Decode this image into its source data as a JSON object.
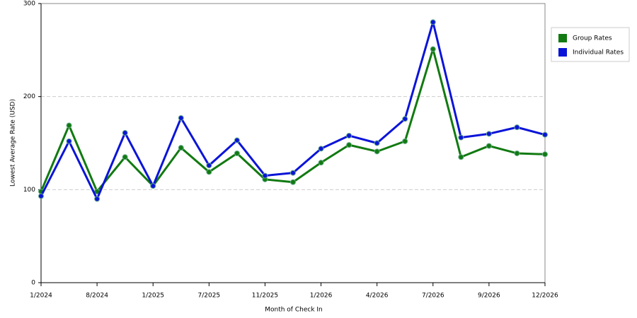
{
  "chart_data": {
    "type": "line",
    "x_label": "Month of Check In",
    "y_label": "Lowest Average Rate (USD)",
    "categories": [
      "1/2024",
      null,
      "8/2024",
      null,
      "1/2025",
      null,
      "7/2025",
      null,
      "11/2025",
      null,
      "1/2026",
      null,
      "4/2026",
      null,
      "7/2026",
      null,
      "9/2026",
      null,
      "12/2026"
    ],
    "series": [
      {
        "name": "Group Rates",
        "color": "#117a11",
        "values": [
          98,
          169,
          98,
          135,
          104,
          145,
          119,
          139,
          111,
          108,
          129,
          148,
          141,
          152,
          251,
          135,
          147,
          139,
          138
        ]
      },
      {
        "name": "Individual Rates",
        "color": "#0a14d8",
        "values": [
          93,
          152,
          90,
          161,
          104,
          177,
          126,
          153,
          115,
          118,
          144,
          158,
          150,
          176,
          280,
          156,
          160,
          167,
          159
        ]
      }
    ],
    "ylim": [
      0,
      300
    ],
    "yticks": [
      0,
      100,
      200,
      300
    ],
    "grid": true,
    "legend": "right"
  }
}
